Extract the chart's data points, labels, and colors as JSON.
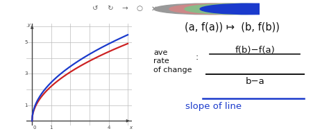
{
  "bg_color": "#ffffff",
  "graph_bg": "#ffffff",
  "grid_color": "#bbbbbb",
  "axis_color": "#444444",
  "curve_red_color": "#cc2222",
  "curve_blue_color": "#1a3acc",
  "text_color": "#111111",
  "blue_text_color": "#1a3acc",
  "title_text": "(a, f(a)) ↦  (b, f(b))",
  "label_ave": "ave\nrate\nof change",
  "colon": ":",
  "numerator": "f(b)−f(a)",
  "denominator": "b−a",
  "slope_text": "slope of line",
  "toolbar_icon_color": "#666666",
  "circle_colors": [
    "#999999",
    "#cc8888",
    "#88bb88",
    "#1a3acc"
  ],
  "bottom_bar_color": "#cccccc"
}
